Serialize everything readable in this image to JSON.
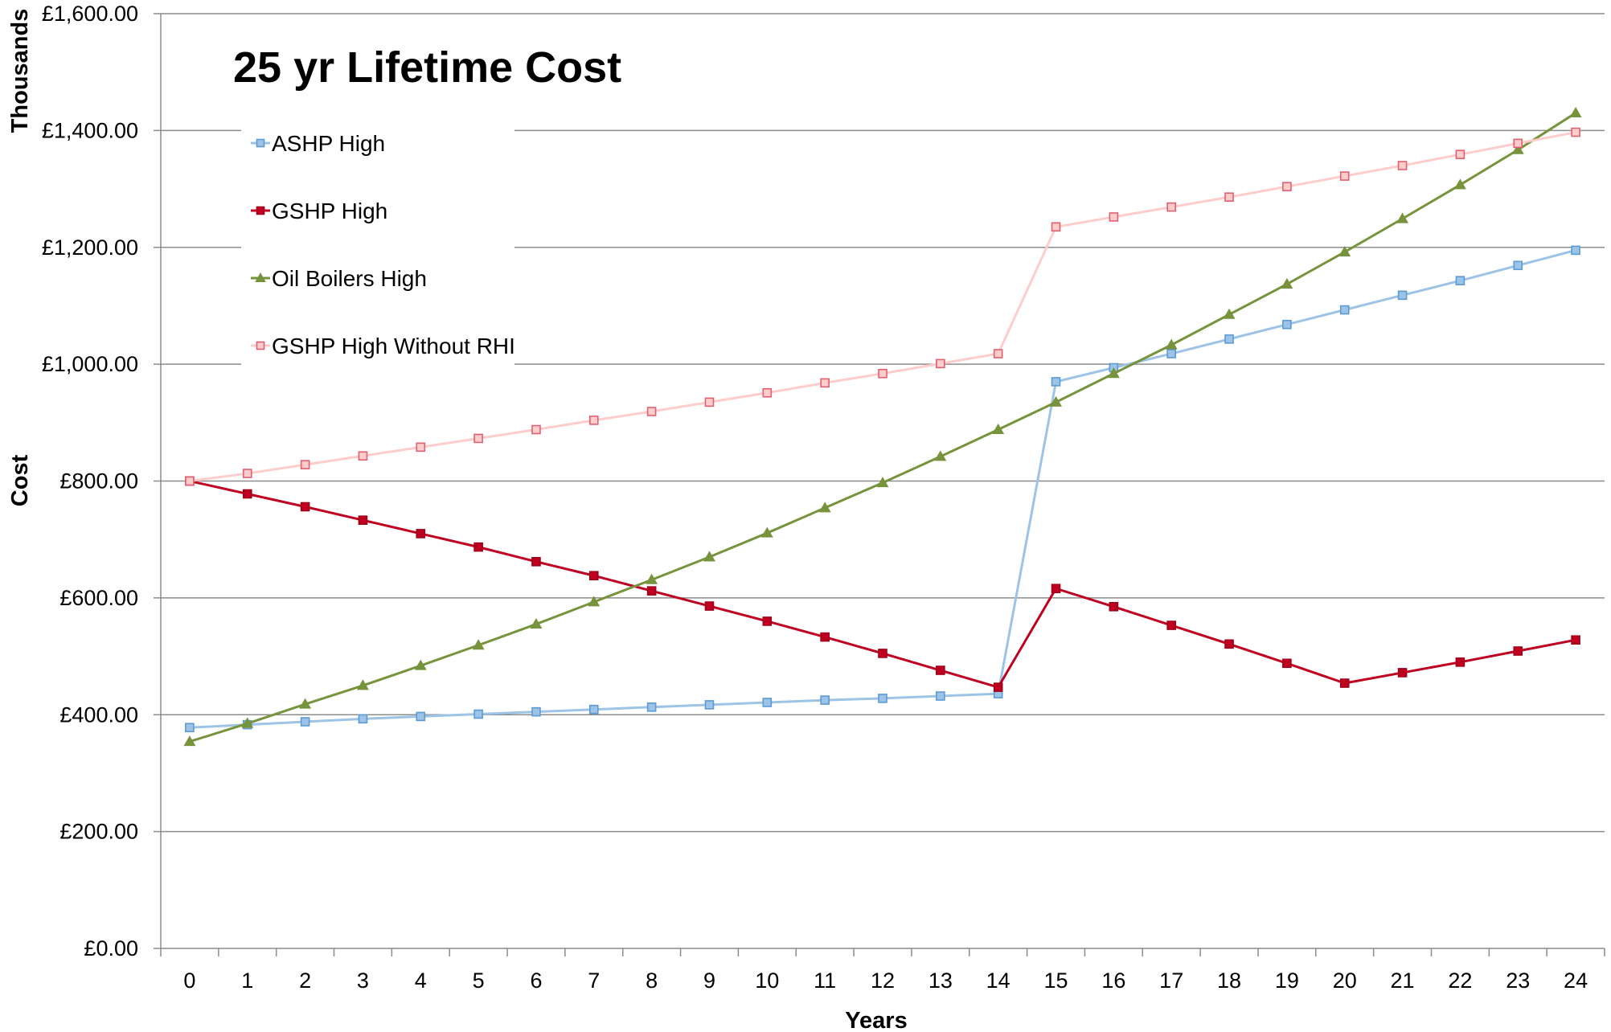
{
  "chart_data": {
    "type": "line",
    "title": "25 yr Lifetime Cost",
    "xlabel": "Years",
    "ylabel": "Cost",
    "y_unit_label": "Thousands",
    "categories": [
      "0",
      "1",
      "2",
      "3",
      "4",
      "5",
      "6",
      "7",
      "8",
      "9",
      "10",
      "11",
      "12",
      "13",
      "14",
      "15",
      "16",
      "17",
      "18",
      "19",
      "20",
      "21",
      "22",
      "23",
      "24"
    ],
    "ylim": [
      0,
      1600
    ],
    "y_ticks": [
      0,
      200,
      400,
      600,
      800,
      1000,
      1200,
      1400,
      1600
    ],
    "y_tick_labels": [
      "£0.00",
      "£200.00",
      "£400.00",
      "£600.00",
      "£800.00",
      "£1,000.00",
      "£1,200.00",
      "£1,400.00",
      "£1,600.00"
    ],
    "grid": "horizontal",
    "legend_position": "top-left",
    "series": [
      {
        "name": "ASHP High",
        "color": "#9DC3E6",
        "marker_fill": "#9DC3E6",
        "marker_stroke": "#5B9BD5",
        "marker": "square",
        "values": [
          378,
          383,
          388,
          393,
          397,
          401,
          405,
          409,
          413,
          417,
          421,
          425,
          428,
          432,
          436,
          970,
          994,
          1018,
          1043,
          1068,
          1093,
          1118,
          1143,
          1169,
          1195
        ]
      },
      {
        "name": "GSHP High",
        "color": "#C00020",
        "marker_fill": "#C00020",
        "marker_stroke": "#A00018",
        "marker": "square",
        "values": [
          800,
          778,
          756,
          733,
          710,
          687,
          662,
          638,
          612,
          586,
          560,
          533,
          505,
          476,
          447,
          616,
          585,
          553,
          521,
          488,
          454,
          472,
          490,
          509,
          528
        ]
      },
      {
        "name": "Oil Boilers High",
        "color": "#77933C",
        "marker_fill": "#77933C",
        "marker_stroke": "#77933C",
        "marker": "triangle",
        "values": [
          354,
          385,
          418,
          450,
          484,
          519,
          555,
          593,
          631,
          670,
          711,
          754,
          797,
          842,
          888,
          935,
          984,
          1033,
          1085,
          1137,
          1192,
          1249,
          1307,
          1367,
          1430
        ]
      },
      {
        "name": "GSHP High Without RHI",
        "color": "#FFCCCC",
        "marker_fill": "#FFCCCC",
        "marker_stroke": "#E06070",
        "marker": "square",
        "values": [
          800,
          813,
          828,
          843,
          858,
          873,
          888,
          904,
          919,
          935,
          951,
          968,
          984,
          1001,
          1018,
          1235,
          1252,
          1269,
          1286,
          1304,
          1322,
          1340,
          1359,
          1378,
          1397
        ]
      }
    ]
  }
}
